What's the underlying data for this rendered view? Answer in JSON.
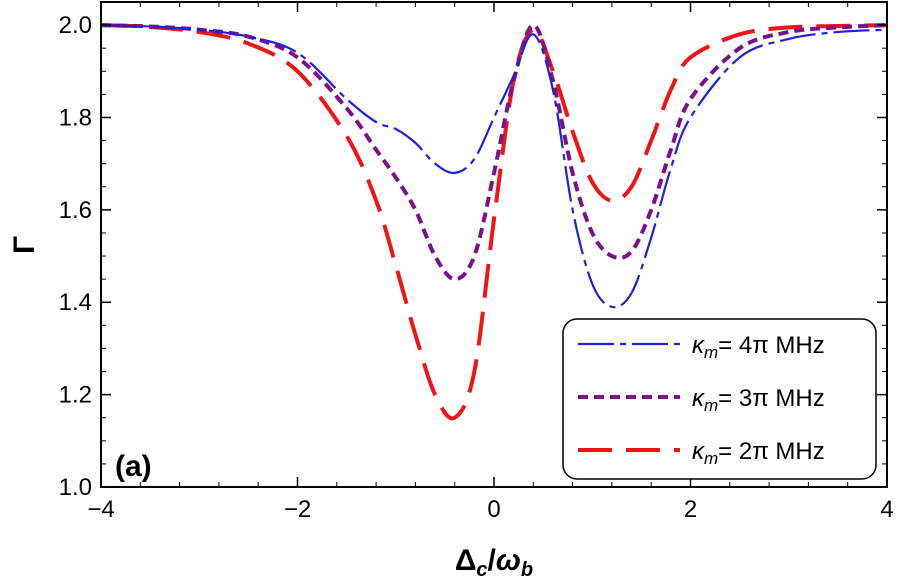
{
  "chart_data": {
    "type": "line",
    "xlabel": "Δc/ωb",
    "ylabel": "Γ",
    "xlim": [
      -4,
      4
    ],
    "ylim": [
      1.0,
      2.05
    ],
    "x_ticks": [
      -4,
      -2,
      0,
      2,
      4
    ],
    "x_tick_labels": [
      "−4",
      "−2",
      "0",
      "2",
      "4"
    ],
    "y_ticks": [
      1.0,
      1.2,
      1.4,
      1.6,
      1.8,
      2.0
    ],
    "y_tick_labels": [
      "1.0",
      "1.2",
      "1.4",
      "1.6",
      "1.8",
      "2.0"
    ],
    "grid": false,
    "legend_position": "bottom-right",
    "panel_label": "(a)",
    "series": [
      {
        "name": "κm= 4π MHz",
        "name_symbol": "κ",
        "name_sub": "m",
        "name_rest": "= 4π MHz",
        "color": "#1f1fdc",
        "dash": "dashdot",
        "x": [
          -4,
          -3.5,
          -3,
          -2.5,
          -2,
          -1.5,
          -1.2,
          -1.0,
          -0.8,
          -0.6,
          -0.4,
          -0.2,
          0,
          0.2,
          0.4,
          0.6,
          0.8,
          1.0,
          1.2,
          1.4,
          1.6,
          1.8,
          2.0,
          2.5,
          3,
          3.5,
          4
        ],
        "y": [
          2.0,
          1.997,
          1.99,
          1.975,
          1.94,
          1.84,
          1.79,
          1.775,
          1.745,
          1.7,
          1.68,
          1.71,
          1.8,
          1.89,
          1.98,
          1.86,
          1.6,
          1.44,
          1.39,
          1.42,
          1.54,
          1.69,
          1.8,
          1.93,
          1.97,
          1.985,
          1.99
        ]
      },
      {
        "name": "κm= 3π MHz",
        "name_symbol": "κ",
        "name_sub": "m",
        "name_rest": "= 3π MHz",
        "color": "#7b0f8c",
        "dash": "short",
        "x": [
          -4,
          -3.5,
          -3,
          -2.5,
          -2,
          -1.5,
          -1.2,
          -1.0,
          -0.8,
          -0.6,
          -0.4,
          -0.2,
          0,
          0.2,
          0.4,
          0.6,
          0.8,
          1.0,
          1.2,
          1.4,
          1.6,
          1.8,
          2.0,
          2.5,
          3,
          3.5,
          4
        ],
        "y": [
          2.0,
          1.997,
          1.99,
          1.975,
          1.93,
          1.82,
          1.73,
          1.67,
          1.6,
          1.5,
          1.45,
          1.5,
          1.68,
          1.88,
          2.0,
          1.88,
          1.68,
          1.55,
          1.5,
          1.51,
          1.6,
          1.73,
          1.84,
          1.95,
          1.985,
          1.995,
          2.0
        ]
      },
      {
        "name": "κm= 2π MHz",
        "name_symbol": "κ",
        "name_sub": "m",
        "name_rest": "= 2π MHz",
        "color": "#f01414",
        "dash": "long",
        "x": [
          -4,
          -3.5,
          -3,
          -2.5,
          -2,
          -1.5,
          -1.2,
          -1.0,
          -0.8,
          -0.6,
          -0.4,
          -0.2,
          0,
          0.2,
          0.4,
          0.6,
          0.8,
          1.0,
          1.2,
          1.4,
          1.6,
          1.8,
          2.0,
          2.5,
          3,
          3.5,
          4
        ],
        "y": [
          2.0,
          1.996,
          1.985,
          1.96,
          1.9,
          1.76,
          1.62,
          1.48,
          1.33,
          1.2,
          1.15,
          1.25,
          1.58,
          1.88,
          1.99,
          1.9,
          1.77,
          1.66,
          1.62,
          1.65,
          1.75,
          1.86,
          1.93,
          1.98,
          1.995,
          1.998,
          2.0
        ]
      }
    ]
  }
}
